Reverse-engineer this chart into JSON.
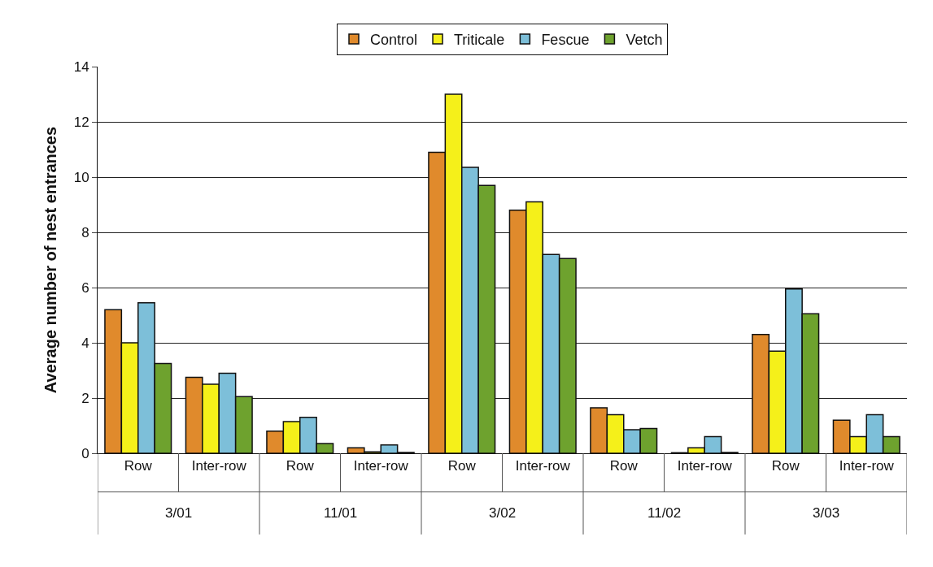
{
  "chart_data": {
    "type": "bar",
    "ylabel": "Average number of nest entrances",
    "categories": [
      "Row",
      "Inter-row",
      "Row",
      "Inter-row",
      "Row",
      "Inter-row",
      "Row",
      "Inter-row",
      "Row",
      "Inter-row"
    ],
    "annotations": [
      "3/01",
      "11/01",
      "3/02",
      "11/02",
      "3/03"
    ],
    "series": [
      {
        "name": "Control",
        "color": "#e08a2c",
        "values": [
          5.2,
          2.75,
          0.8,
          0.2,
          10.9,
          8.8,
          1.65,
          0.02,
          4.3,
          1.2
        ]
      },
      {
        "name": "Triticale",
        "color": "#f5f01a",
        "values": [
          4.0,
          2.5,
          1.15,
          0.05,
          13.0,
          9.1,
          1.4,
          0.2,
          3.7,
          0.6
        ]
      },
      {
        "name": "Fescue",
        "color": "#7dbfd9",
        "values": [
          5.45,
          2.9,
          1.3,
          0.3,
          10.35,
          7.2,
          0.85,
          0.6,
          5.95,
          1.4
        ]
      },
      {
        "name": "Vetch",
        "color": "#6ea22e",
        "values": [
          3.25,
          2.05,
          0.35,
          0.03,
          9.7,
          7.05,
          0.9,
          0.03,
          5.05,
          0.6
        ]
      }
    ],
    "ylim": [
      0,
      14
    ],
    "yticks": [
      0,
      2,
      4,
      6,
      8,
      10,
      12,
      14
    ],
    "grid": "y",
    "legend": "top"
  }
}
